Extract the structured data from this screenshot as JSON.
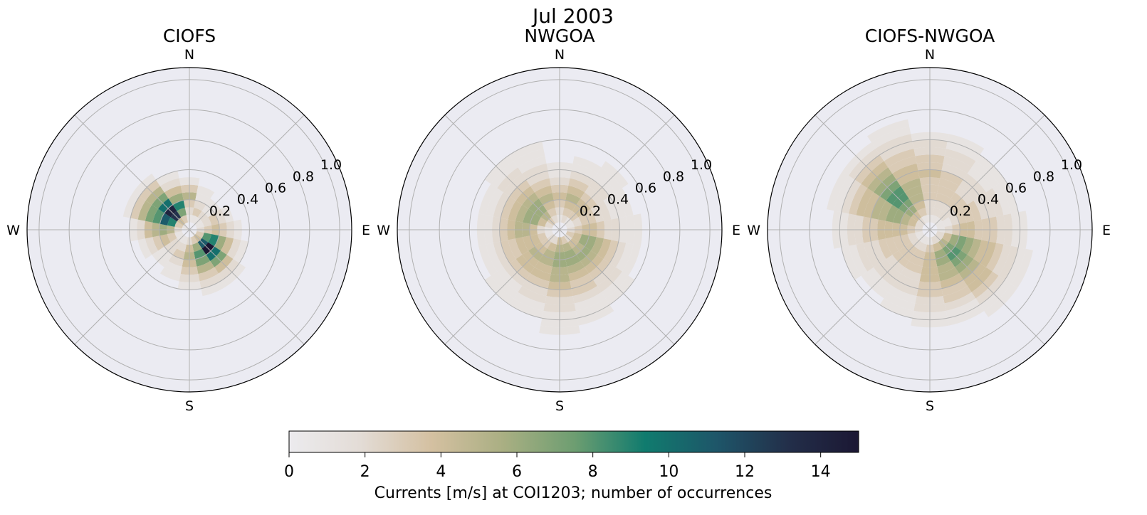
{
  "chart_data": {
    "type": "polar-histogram",
    "suptitle": "Jul 2003",
    "compass": {
      "north": "N",
      "east": "E",
      "south": "S",
      "west": "W"
    },
    "radial_ticks": [
      "0.2",
      "0.4",
      "0.6",
      "0.8",
      "1.0"
    ],
    "radial_tick_values": [
      0.2,
      0.4,
      0.6,
      0.8,
      1.0
    ],
    "radial_max": 1.08,
    "direction_bins": 16,
    "speed_bins": [
      0,
      0.05,
      0.1,
      0.15,
      0.2,
      0.25,
      0.3,
      0.35,
      0.4,
      0.45,
      0.5,
      0.55,
      0.6,
      0.65,
      0.7,
      0.75,
      0.8,
      0.85,
      0.9,
      0.95,
      1.0
    ],
    "colorbar": {
      "min": 0,
      "max": 15,
      "ticks": [
        0,
        2,
        4,
        6,
        8,
        10,
        12,
        14
      ],
      "tick_labels": [
        "0",
        "2",
        "4",
        "6",
        "8",
        "10",
        "12",
        "14"
      ],
      "label": "Currents [m/s] at COI1203; number of occurrences",
      "stops": [
        "#ecebee",
        "#e3dcd6",
        "#d4c0a1",
        "#aaaf83",
        "#6e9e71",
        "#107b6e",
        "#1e5669",
        "#232f4a",
        "#1b1733"
      ]
    },
    "panels": [
      {
        "title": "CIOFS",
        "note": "counts[direction_bin][speed_bin]; direction bins of 22.5 deg clockwise from N; speed bins of 0.05 m/s",
        "counts": [
          [
            0,
            1,
            2,
            3,
            5,
            3,
            1,
            0,
            0,
            0,
            0,
            0,
            0,
            0,
            0,
            0,
            0,
            0,
            0,
            0
          ],
          [
            0,
            1,
            3,
            2,
            1,
            1,
            0,
            0,
            0,
            0,
            0,
            0,
            0,
            0,
            0,
            0,
            0,
            0,
            0,
            0
          ],
          [
            0,
            1,
            2,
            1,
            1,
            0,
            0,
            0,
            0,
            0,
            0,
            0,
            0,
            0,
            0,
            0,
            0,
            0,
            0,
            0
          ],
          [
            0,
            1,
            2,
            3,
            2,
            1,
            0,
            0,
            0,
            0,
            0,
            0,
            0,
            0,
            0,
            0,
            0,
            0,
            0,
            0
          ],
          [
            0,
            2,
            3,
            4,
            3,
            2,
            1,
            0,
            0,
            0,
            0,
            0,
            0,
            0,
            0,
            0,
            0,
            0,
            0,
            0
          ],
          [
            0,
            3,
            8,
            9,
            6,
            4,
            2,
            1,
            0,
            0,
            0,
            0,
            0,
            0,
            0,
            0,
            0,
            0,
            0,
            0
          ],
          [
            1,
            4,
            11,
            15,
            10,
            7,
            4,
            2,
            1,
            0,
            0,
            0,
            0,
            0,
            0,
            0,
            0,
            0,
            0,
            0
          ],
          [
            0,
            3,
            6,
            8,
            7,
            5,
            3,
            2,
            1,
            0,
            0,
            0,
            0,
            0,
            0,
            0,
            0,
            0,
            0,
            0
          ],
          [
            0,
            2,
            4,
            5,
            4,
            3,
            2,
            1,
            0,
            0,
            0,
            0,
            0,
            0,
            0,
            0,
            0,
            0,
            0,
            0
          ],
          [
            0,
            1,
            2,
            3,
            2,
            1,
            1,
            0,
            0,
            0,
            0,
            0,
            0,
            0,
            0,
            0,
            0,
            0,
            0,
            0
          ],
          [
            0,
            1,
            2,
            2,
            1,
            1,
            0,
            0,
            0,
            0,
            0,
            0,
            0,
            0,
            0,
            0,
            0,
            0,
            0,
            0
          ],
          [
            0,
            1,
            3,
            4,
            3,
            2,
            1,
            0,
            0,
            0,
            0,
            0,
            0,
            0,
            0,
            0,
            0,
            0,
            0,
            0
          ],
          [
            0,
            2,
            5,
            6,
            5,
            4,
            2,
            1,
            0,
            0,
            0,
            0,
            0,
            0,
            0,
            0,
            0,
            0,
            0,
            0
          ],
          [
            1,
            3,
            9,
            11,
            8,
            7,
            5,
            3,
            1,
            0,
            0,
            0,
            0,
            0,
            0,
            0,
            0,
            0,
            0,
            0
          ],
          [
            1,
            4,
            13,
            14,
            10,
            7,
            5,
            3,
            1,
            0,
            0,
            0,
            0,
            0,
            0,
            0,
            0,
            0,
            0,
            0
          ],
          [
            0,
            3,
            7,
            9,
            6,
            4,
            2,
            1,
            0,
            0,
            0,
            0,
            0,
            0,
            0,
            0,
            0,
            0,
            0,
            0
          ]
        ]
      },
      {
        "title": "NWGOA",
        "note": "counts[direction_bin][speed_bin]",
        "counts": [
          [
            0,
            1,
            2,
            3,
            4,
            3,
            2,
            1,
            1,
            0,
            0,
            0,
            0,
            0,
            0,
            0,
            0,
            0,
            0,
            0
          ],
          [
            0,
            2,
            3,
            4,
            5,
            4,
            3,
            2,
            1,
            1,
            0,
            0,
            0,
            0,
            0,
            0,
            0,
            0,
            0,
            0
          ],
          [
            0,
            1,
            3,
            4,
            4,
            3,
            2,
            2,
            1,
            1,
            1,
            0,
            0,
            0,
            0,
            0,
            0,
            0,
            0,
            0
          ],
          [
            0,
            1,
            2,
            3,
            3,
            2,
            2,
            1,
            1,
            1,
            0,
            0,
            0,
            0,
            0,
            0,
            0,
            0,
            0,
            0
          ],
          [
            0,
            2,
            3,
            4,
            4,
            3,
            2,
            2,
            1,
            1,
            1,
            0,
            0,
            0,
            0,
            0,
            0,
            0,
            0,
            0
          ],
          [
            0,
            3,
            4,
            6,
            6,
            5,
            4,
            3,
            2,
            1,
            1,
            0,
            0,
            0,
            0,
            0,
            0,
            0,
            0,
            0
          ],
          [
            0,
            2,
            4,
            5,
            6,
            5,
            4,
            3,
            2,
            2,
            1,
            1,
            0,
            0,
            0,
            0,
            0,
            0,
            0,
            0
          ],
          [
            0,
            3,
            5,
            6,
            6,
            5,
            4,
            3,
            3,
            2,
            1,
            1,
            1,
            0,
            0,
            0,
            0,
            0,
            0,
            0
          ],
          [
            0,
            4,
            5,
            6,
            6,
            5,
            5,
            4,
            3,
            2,
            2,
            1,
            1,
            1,
            0,
            0,
            0,
            0,
            0,
            0
          ],
          [
            0,
            2,
            4,
            5,
            5,
            4,
            4,
            3,
            2,
            2,
            1,
            1,
            0,
            0,
            0,
            0,
            0,
            0,
            0,
            0
          ],
          [
            0,
            2,
            3,
            4,
            5,
            4,
            4,
            3,
            2,
            1,
            1,
            1,
            0,
            0,
            0,
            0,
            0,
            0,
            0,
            0
          ],
          [
            0,
            1,
            3,
            4,
            4,
            4,
            3,
            3,
            2,
            1,
            1,
            0,
            0,
            0,
            0,
            0,
            0,
            0,
            0,
            0
          ],
          [
            0,
            1,
            2,
            4,
            5,
            5,
            4,
            3,
            2,
            1,
            1,
            0,
            0,
            0,
            0,
            0,
            0,
            0,
            0,
            0
          ],
          [
            0,
            2,
            4,
            6,
            6,
            5,
            4,
            3,
            2,
            1,
            1,
            0,
            0,
            0,
            0,
            0,
            0,
            0,
            0,
            0
          ],
          [
            0,
            3,
            5,
            6,
            6,
            5,
            4,
            3,
            2,
            2,
            1,
            1,
            0,
            0,
            0,
            0,
            0,
            0,
            0,
            0
          ],
          [
            0,
            2,
            3,
            4,
            5,
            4,
            3,
            2,
            2,
            1,
            1,
            1,
            0,
            0,
            0,
            0,
            0,
            0,
            0,
            0
          ]
        ]
      },
      {
        "title": "CIOFS-NWGOA",
        "note": "counts[direction_bin][speed_bin]",
        "counts": [
          [
            0,
            1,
            2,
            2,
            3,
            3,
            3,
            4,
            3,
            3,
            2,
            2,
            1,
            0,
            0,
            0,
            0,
            0,
            0,
            0
          ],
          [
            0,
            1,
            2,
            2,
            3,
            3,
            3,
            3,
            2,
            2,
            2,
            1,
            1,
            0,
            0,
            0,
            0,
            0,
            0,
            0
          ],
          [
            0,
            1,
            2,
            2,
            3,
            3,
            2,
            2,
            2,
            1,
            1,
            1,
            0,
            0,
            0,
            0,
            0,
            0,
            0,
            0
          ],
          [
            0,
            1,
            1,
            2,
            3,
            3,
            3,
            2,
            2,
            2,
            1,
            1,
            0,
            0,
            0,
            0,
            0,
            0,
            0,
            0
          ],
          [
            0,
            1,
            2,
            3,
            4,
            4,
            3,
            3,
            3,
            2,
            2,
            1,
            1,
            0,
            0,
            0,
            0,
            0,
            0,
            0
          ],
          [
            0,
            2,
            4,
            6,
            7,
            6,
            5,
            4,
            4,
            3,
            2,
            2,
            1,
            1,
            0,
            0,
            0,
            0,
            0,
            0
          ],
          [
            0,
            2,
            5,
            7,
            8,
            7,
            6,
            5,
            4,
            4,
            3,
            2,
            1,
            1,
            0,
            0,
            0,
            0,
            0,
            0
          ],
          [
            0,
            2,
            4,
            6,
            6,
            5,
            5,
            4,
            3,
            3,
            2,
            1,
            1,
            0,
            0,
            0,
            0,
            0,
            0,
            0
          ],
          [
            0,
            1,
            3,
            4,
            4,
            4,
            4,
            3,
            3,
            2,
            2,
            1,
            1,
            0,
            0,
            0,
            0,
            0,
            0,
            0
          ],
          [
            0,
            1,
            2,
            3,
            3,
            3,
            2,
            2,
            2,
            1,
            1,
            1,
            0,
            0,
            0,
            0,
            0,
            0,
            0,
            0
          ],
          [
            0,
            1,
            2,
            3,
            3,
            3,
            2,
            2,
            2,
            1,
            1,
            0,
            0,
            0,
            0,
            0,
            0,
            0,
            0,
            0
          ],
          [
            0,
            1,
            2,
            3,
            3,
            3,
            3,
            2,
            2,
            2,
            1,
            1,
            0,
            0,
            0,
            0,
            0,
            0,
            0,
            0
          ],
          [
            0,
            2,
            3,
            4,
            4,
            4,
            4,
            3,
            3,
            2,
            2,
            1,
            1,
            0,
            0,
            0,
            0,
            0,
            0,
            0
          ],
          [
            0,
            2,
            4,
            5,
            6,
            6,
            5,
            5,
            4,
            4,
            3,
            2,
            1,
            1,
            0,
            0,
            0,
            0,
            0,
            0
          ],
          [
            0,
            2,
            4,
            6,
            7,
            8,
            8,
            7,
            6,
            5,
            4,
            3,
            2,
            1,
            0,
            0,
            0,
            0,
            0,
            0
          ],
          [
            0,
            1,
            3,
            4,
            5,
            5,
            5,
            4,
            4,
            3,
            3,
            2,
            2,
            1,
            1,
            0,
            0,
            0,
            0,
            0
          ]
        ]
      }
    ]
  }
}
